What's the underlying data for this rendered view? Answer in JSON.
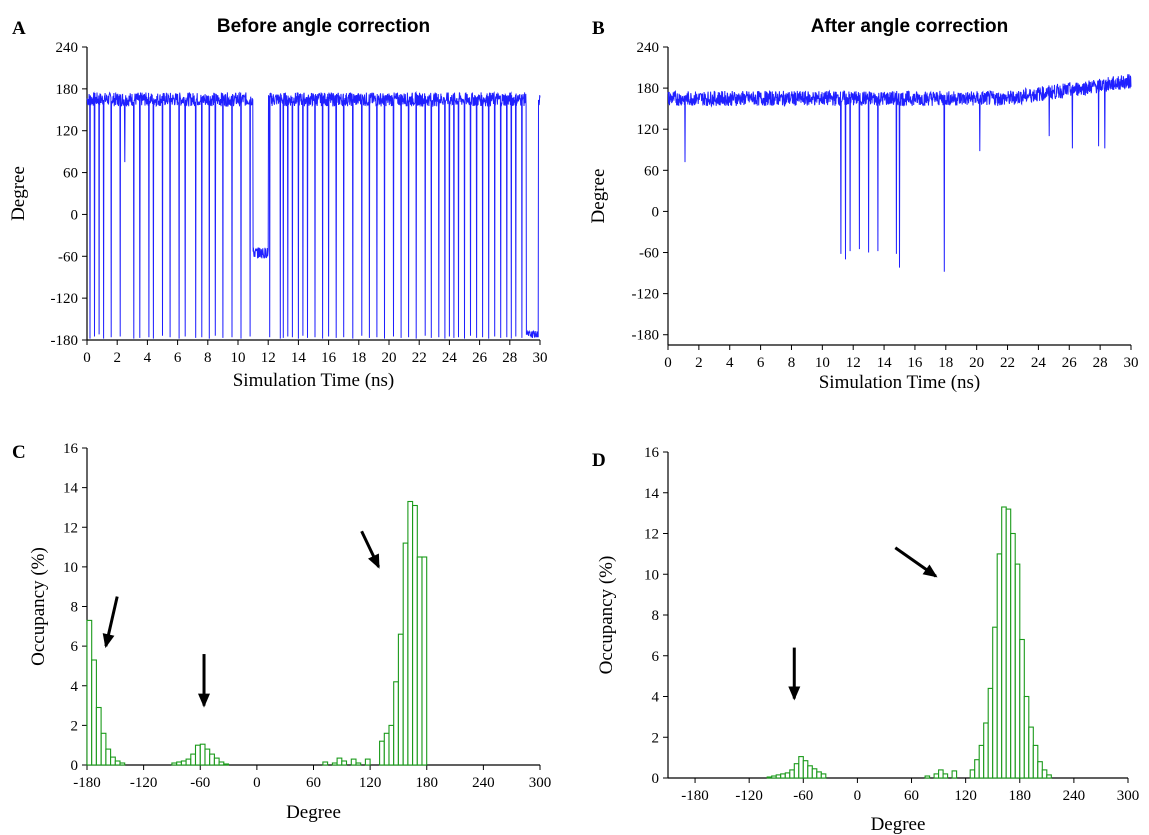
{
  "chart_data": [
    {
      "panel": "A",
      "type": "line",
      "title": "Before angle correction",
      "xlabel": "Simulation Time (ns)",
      "ylabel": "Degree",
      "xlim": [
        0,
        30
      ],
      "ylim": [
        -180,
        240
      ],
      "xticks": [
        0,
        2,
        4,
        6,
        8,
        10,
        12,
        14,
        16,
        18,
        20,
        22,
        24,
        26,
        28,
        30
      ],
      "yticks": [
        -180,
        -120,
        -60,
        0,
        60,
        120,
        180,
        240
      ],
      "grid": false,
      "color": "#1f1fff",
      "baseline": 165,
      "noise": 10,
      "drops": [
        {
          "t": 0.2,
          "v": -178
        },
        {
          "t": 0.5,
          "v": -175
        },
        {
          "t": 0.8,
          "v": -172
        },
        {
          "t": 1.1,
          "v": -178
        },
        {
          "t": 1.6,
          "v": -176
        },
        {
          "t": 2.2,
          "v": -175
        },
        {
          "t": 2.5,
          "v": 75
        },
        {
          "t": 3.1,
          "v": -178
        },
        {
          "t": 3.5,
          "v": -177
        },
        {
          "t": 4.1,
          "v": -176
        },
        {
          "t": 4.4,
          "v": -178
        },
        {
          "t": 5.0,
          "v": -174
        },
        {
          "t": 5.5,
          "v": -176
        },
        {
          "t": 6.1,
          "v": -178
        },
        {
          "t": 6.5,
          "v": -175
        },
        {
          "t": 7.2,
          "v": -177
        },
        {
          "t": 7.6,
          "v": -176
        },
        {
          "t": 8.1,
          "v": -178
        },
        {
          "t": 8.5,
          "v": -174
        },
        {
          "t": 9.0,
          "v": -177
        },
        {
          "t": 9.6,
          "v": -176
        },
        {
          "t": 10.2,
          "v": -178
        },
        {
          "t": 10.8,
          "v": -175
        },
        {
          "t": 12.1,
          "v": -176
        },
        {
          "t": 12.8,
          "v": -178
        },
        {
          "t": 13.0,
          "v": -177
        },
        {
          "t": 13.3,
          "v": -175
        },
        {
          "t": 13.6,
          "v": -176
        },
        {
          "t": 14.0,
          "v": -178
        },
        {
          "t": 14.3,
          "v": -174
        },
        {
          "t": 14.6,
          "v": -177
        },
        {
          "t": 15.1,
          "v": -176
        },
        {
          "t": 15.6,
          "v": -178
        },
        {
          "t": 16.0,
          "v": -175
        },
        {
          "t": 16.5,
          "v": -177
        },
        {
          "t": 17.0,
          "v": -176
        },
        {
          "t": 17.6,
          "v": -178
        },
        {
          "t": 18.2,
          "v": -174
        },
        {
          "t": 18.7,
          "v": -177
        },
        {
          "t": 19.2,
          "v": -176
        },
        {
          "t": 19.7,
          "v": -178
        },
        {
          "t": 20.3,
          "v": -175
        },
        {
          "t": 20.8,
          "v": -177
        },
        {
          "t": 21.3,
          "v": -176
        },
        {
          "t": 21.8,
          "v": -178
        },
        {
          "t": 22.4,
          "v": -174
        },
        {
          "t": 22.8,
          "v": -177
        },
        {
          "t": 23.3,
          "v": -176
        },
        {
          "t": 23.7,
          "v": -178
        },
        {
          "t": 24.0,
          "v": -175
        },
        {
          "t": 24.3,
          "v": -177
        },
        {
          "t": 24.6,
          "v": -176
        },
        {
          "t": 25.0,
          "v": -178
        },
        {
          "t": 25.4,
          "v": -174
        },
        {
          "t": 25.8,
          "v": -177
        },
        {
          "t": 26.2,
          "v": -176
        },
        {
          "t": 26.6,
          "v": -178
        },
        {
          "t": 27.0,
          "v": -175
        },
        {
          "t": 27.4,
          "v": -177
        },
        {
          "t": 27.8,
          "v": -176
        },
        {
          "t": 28.1,
          "v": -178
        },
        {
          "t": 28.4,
          "v": -175
        },
        {
          "t": 28.8,
          "v": -177
        }
      ],
      "segments": [
        {
          "t0": 11.0,
          "t1": 12.0,
          "v": -55,
          "noise": 8
        },
        {
          "t0": 29.1,
          "t1": 29.9,
          "v": -172,
          "noise": 5
        }
      ]
    },
    {
      "panel": "B",
      "type": "line",
      "title": "After angle correction",
      "xlabel": "Simulation Time (ns)",
      "ylabel": "Degree",
      "xlim": [
        0,
        30
      ],
      "ylim": [
        -195,
        240
      ],
      "xticks": [
        0,
        2,
        4,
        6,
        8,
        10,
        12,
        14,
        16,
        18,
        20,
        22,
        24,
        26,
        28,
        30
      ],
      "yticks": [
        -180,
        -120,
        -60,
        0,
        60,
        120,
        180,
        240
      ],
      "grid": false,
      "color": "#1f1fff",
      "baseline": 165,
      "noise": 11,
      "drops": [
        {
          "t": 1.1,
          "v": 72
        },
        {
          "t": 11.2,
          "v": -62
        },
        {
          "t": 11.5,
          "v": -70
        },
        {
          "t": 11.8,
          "v": -58
        },
        {
          "t": 12.4,
          "v": -55
        },
        {
          "t": 13.0,
          "v": -60
        },
        {
          "t": 13.6,
          "v": -58
        },
        {
          "t": 14.8,
          "v": -62
        },
        {
          "t": 15.0,
          "v": -82
        },
        {
          "t": 17.9,
          "v": -88
        },
        {
          "t": 20.2,
          "v": 88
        },
        {
          "t": 24.7,
          "v": 110
        },
        {
          "t": 26.2,
          "v": 92
        },
        {
          "t": 27.9,
          "v": 95
        },
        {
          "t": 28.3,
          "v": 92
        }
      ],
      "segments": [],
      "trend": {
        "t0": 22.0,
        "t1": 30.0,
        "v0": 165,
        "v1": 190
      }
    },
    {
      "panel": "C",
      "type": "bar",
      "xlabel": "Degree",
      "ylabel": "Occupancy (%)",
      "xlim": [
        -180,
        300
      ],
      "ylim": [
        0,
        16
      ],
      "xticks": [
        -180,
        -120,
        -60,
        0,
        60,
        120,
        180,
        240,
        300
      ],
      "yticks": [
        0,
        2,
        4,
        6,
        8,
        10,
        12,
        14,
        16
      ],
      "bin_width": 5,
      "color": "#1a9a1a",
      "bins": [
        {
          "x": -180,
          "v": 7.3
        },
        {
          "x": -175,
          "v": 5.3
        },
        {
          "x": -170,
          "v": 2.9
        },
        {
          "x": -165,
          "v": 1.6
        },
        {
          "x": -160,
          "v": 0.8
        },
        {
          "x": -155,
          "v": 0.4
        },
        {
          "x": -150,
          "v": 0.2
        },
        {
          "x": -145,
          "v": 0.1
        },
        {
          "x": -90,
          "v": 0.1
        },
        {
          "x": -85,
          "v": 0.15
        },
        {
          "x": -80,
          "v": 0.2
        },
        {
          "x": -75,
          "v": 0.3
        },
        {
          "x": -70,
          "v": 0.55
        },
        {
          "x": -65,
          "v": 1.0
        },
        {
          "x": -60,
          "v": 1.05
        },
        {
          "x": -55,
          "v": 0.8
        },
        {
          "x": -50,
          "v": 0.55
        },
        {
          "x": -45,
          "v": 0.35
        },
        {
          "x": -40,
          "v": 0.15
        },
        {
          "x": -35,
          "v": 0.05
        },
        {
          "x": 70,
          "v": 0.15
        },
        {
          "x": 80,
          "v": 0.1
        },
        {
          "x": 85,
          "v": 0.35
        },
        {
          "x": 90,
          "v": 0.2
        },
        {
          "x": 100,
          "v": 0.3
        },
        {
          "x": 105,
          "v": 0.1
        },
        {
          "x": 115,
          "v": 0.3
        },
        {
          "x": 130,
          "v": 1.2
        },
        {
          "x": 135,
          "v": 1.6
        },
        {
          "x": 140,
          "v": 2.0
        },
        {
          "x": 145,
          "v": 4.2
        },
        {
          "x": 150,
          "v": 6.6
        },
        {
          "x": 155,
          "v": 11.2
        },
        {
          "x": 160,
          "v": 13.3
        },
        {
          "x": 165,
          "v": 13.1
        },
        {
          "x": 170,
          "v": 10.5
        },
        {
          "x": 175,
          "v": 10.5
        }
      ],
      "arrows": [
        {
          "x1": -148,
          "y1": 8.5,
          "x2": -160,
          "y2": 6.0
        },
        {
          "x1": -56,
          "y1": 5.6,
          "x2": -56,
          "y2": 3.0
        },
        {
          "x1": 111,
          "y1": 11.8,
          "x2": 129,
          "y2": 10.0
        }
      ]
    },
    {
      "panel": "D",
      "type": "bar",
      "xlabel": "Degree",
      "ylabel": "Occupancy (%)",
      "xlim": [
        -210,
        300
      ],
      "ylim": [
        0,
        16
      ],
      "xticks": [
        -180,
        -120,
        -60,
        0,
        60,
        120,
        180,
        240,
        300
      ],
      "yticks": [
        0,
        2,
        4,
        6,
        8,
        10,
        12,
        14,
        16
      ],
      "bin_width": 5,
      "color": "#1a9a1a",
      "bins": [
        {
          "x": -100,
          "v": 0.05
        },
        {
          "x": -95,
          "v": 0.1
        },
        {
          "x": -90,
          "v": 0.15
        },
        {
          "x": -85,
          "v": 0.2
        },
        {
          "x": -80,
          "v": 0.25
        },
        {
          "x": -75,
          "v": 0.4
        },
        {
          "x": -70,
          "v": 0.7
        },
        {
          "x": -65,
          "v": 1.05
        },
        {
          "x": -60,
          "v": 0.85
        },
        {
          "x": -55,
          "v": 0.6
        },
        {
          "x": -50,
          "v": 0.45
        },
        {
          "x": -45,
          "v": 0.3
        },
        {
          "x": -40,
          "v": 0.2
        },
        {
          "x": 75,
          "v": 0.1
        },
        {
          "x": 85,
          "v": 0.2
        },
        {
          "x": 90,
          "v": 0.4
        },
        {
          "x": 95,
          "v": 0.2
        },
        {
          "x": 105,
          "v": 0.35
        },
        {
          "x": 125,
          "v": 0.4
        },
        {
          "x": 130,
          "v": 0.9
        },
        {
          "x": 135,
          "v": 1.6
        },
        {
          "x": 140,
          "v": 2.7
        },
        {
          "x": 145,
          "v": 4.4
        },
        {
          "x": 150,
          "v": 7.4
        },
        {
          "x": 155,
          "v": 11.0
        },
        {
          "x": 160,
          "v": 13.3
        },
        {
          "x": 165,
          "v": 13.2
        },
        {
          "x": 170,
          "v": 12.0
        },
        {
          "x": 175,
          "v": 10.5
        },
        {
          "x": 180,
          "v": 6.8
        },
        {
          "x": 185,
          "v": 4.0
        },
        {
          "x": 190,
          "v": 2.5
        },
        {
          "x": 195,
          "v": 1.6
        },
        {
          "x": 200,
          "v": 0.8
        },
        {
          "x": 205,
          "v": 0.4
        },
        {
          "x": 210,
          "v": 0.15
        }
      ],
      "arrows": [
        {
          "x1": -70,
          "y1": 6.4,
          "x2": -70,
          "y2": 3.9
        },
        {
          "x1": 42,
          "y1": 11.3,
          "x2": 87,
          "y2": 9.9
        }
      ]
    }
  ]
}
